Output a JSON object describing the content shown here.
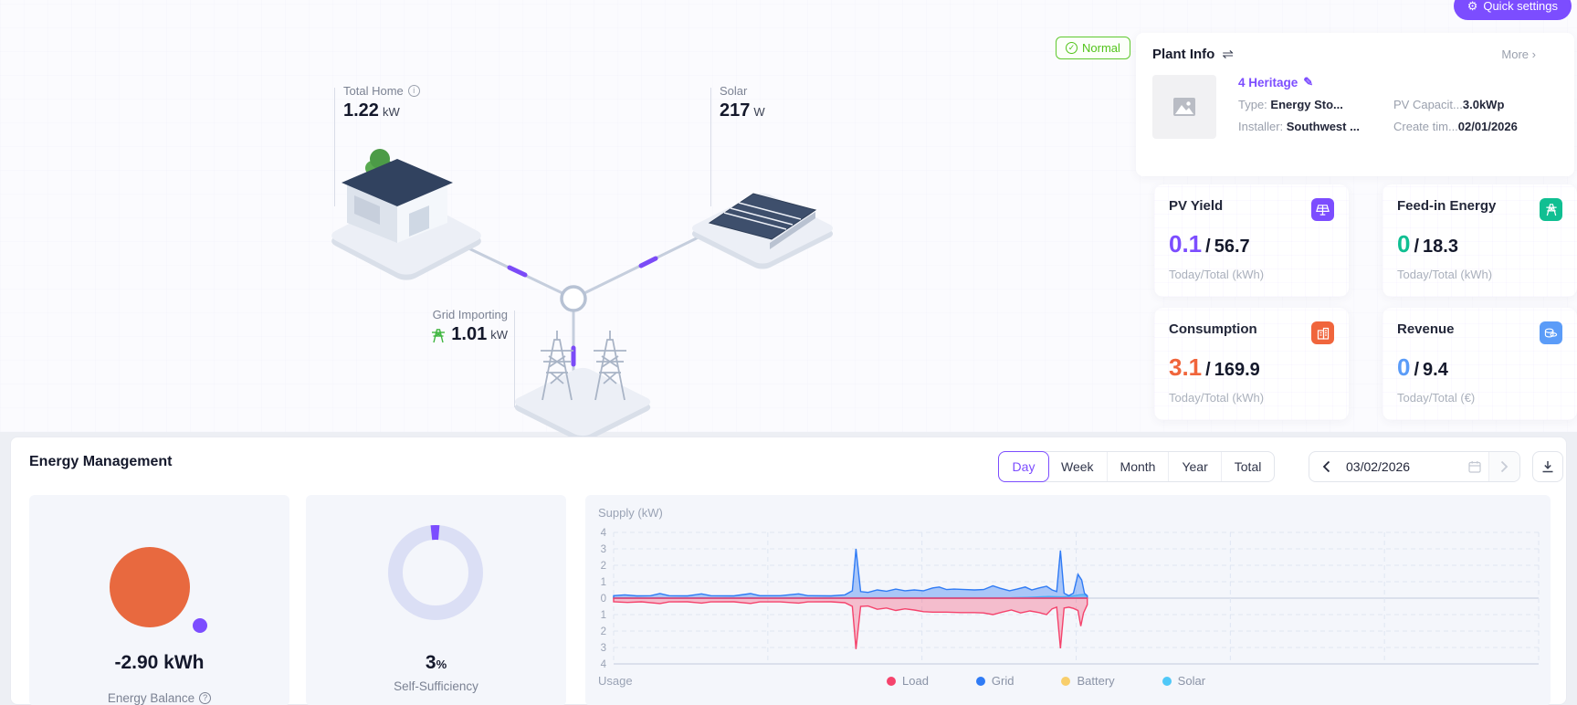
{
  "ui": {
    "separator": "/"
  },
  "colors": {
    "accent": "#7c4dff",
    "normal_green": "#52c41a",
    "balance_main": "#e8693f",
    "balance_dot": "#7c4dff",
    "donut_track": "#dbdff5",
    "donut_fill": "#7c4dff"
  },
  "header": {
    "quick_settings": "Quick settings"
  },
  "status_badge": {
    "label": "Normal"
  },
  "flow": {
    "home": {
      "label": "Total Home",
      "value": "1.22",
      "unit": "kW"
    },
    "solar": {
      "label": "Solar",
      "value": "217",
      "unit": "W"
    },
    "grid": {
      "label": "Grid Importing",
      "value": "1.01",
      "unit": "kW"
    }
  },
  "plant_info": {
    "title": "Plant Info",
    "more": "More",
    "more_arrow": "›",
    "name": "4 Heritage",
    "type_label": "Type:",
    "type_value": "Energy Sto...",
    "pv_label": "PV Capacit...",
    "pv_value": "3.0kWp",
    "installer_label": "Installer:",
    "installer_value": "Southwest ...",
    "create_label": "Create tim...",
    "create_value": "02/01/2026"
  },
  "stat_cards": [
    {
      "title": "PV Yield",
      "today": "0.1",
      "total": "56.7",
      "footer": "Today/Total (kWh)",
      "color": "#7c4dff",
      "icon": "solar-panel"
    },
    {
      "title": "Feed-in Energy",
      "today": "0",
      "total": "18.3",
      "footer": "Today/Total (kWh)",
      "color": "#10bf92",
      "icon": "pylon"
    },
    {
      "title": "Consumption",
      "today": "3.1",
      "total": "169.9",
      "footer": "Today/Total (kWh)",
      "color": "#f0653c",
      "icon": "building"
    },
    {
      "title": "Revenue",
      "today": "0",
      "total": "9.4",
      "footer": "Today/Total (€)",
      "color": "#5b9cf8",
      "icon": "coins"
    }
  ],
  "energy_management": {
    "title": "Energy Management",
    "tabs": [
      "Day",
      "Week",
      "Month",
      "Year",
      "Total"
    ],
    "active_tab": "Day",
    "date": "03/02/2026",
    "balance": {
      "value": "-2.90 kWh",
      "label": "Energy Balance"
    },
    "self_sufficiency": {
      "value": "3",
      "unit": "%",
      "label": "Self-Sufficiency",
      "percent": 3
    }
  },
  "chart_data": {
    "type": "area",
    "title": "Supply (kW)",
    "xlabel_bottom": "Usage",
    "yticks": [
      4,
      3,
      2,
      1,
      0,
      1,
      2,
      3,
      4
    ],
    "ymax": 4,
    "x_range_hours": 24,
    "grid": "dashed",
    "legend_position": "bottom",
    "legend": [
      {
        "name": "Load",
        "color": "#f5436c"
      },
      {
        "name": "Grid",
        "color": "#2f7bf5"
      },
      {
        "name": "Battery",
        "color": "#f8ce6b"
      },
      {
        "name": "Solar",
        "color": "#4fc8f8"
      }
    ],
    "series": [
      {
        "name": "Battery",
        "color": "#f8ce6b",
        "fill": "rgba(248,206,107,0.45)",
        "direction": "up",
        "points": [
          [
            0,
            0.02
          ],
          [
            0.512,
            0.02
          ]
        ]
      },
      {
        "name": "Solar",
        "color": "#4fc8f8",
        "fill": "rgba(79,200,248,0.5)",
        "direction": "up",
        "points": [
          [
            0,
            0.01
          ],
          [
            0.43,
            0.02
          ],
          [
            0.45,
            0.05
          ],
          [
            0.47,
            0.1
          ],
          [
            0.485,
            0.08
          ],
          [
            0.495,
            0.12
          ],
          [
            0.503,
            0.2
          ],
          [
            0.508,
            0.22
          ],
          [
            0.512,
            0.12
          ]
        ]
      },
      {
        "name": "Grid",
        "color": "#2f7bf5",
        "fill": "rgba(77,139,244,0.45)",
        "direction": "up",
        "points": [
          [
            0,
            0.15
          ],
          [
            0.012,
            0.2
          ],
          [
            0.025,
            0.14
          ],
          [
            0.04,
            0.15
          ],
          [
            0.05,
            0.28
          ],
          [
            0.06,
            0.15
          ],
          [
            0.08,
            0.14
          ],
          [
            0.095,
            0.26
          ],
          [
            0.105,
            0.15
          ],
          [
            0.13,
            0.14
          ],
          [
            0.148,
            0.28
          ],
          [
            0.158,
            0.15
          ],
          [
            0.18,
            0.15
          ],
          [
            0.2,
            0.26
          ],
          [
            0.21,
            0.15
          ],
          [
            0.235,
            0.14
          ],
          [
            0.25,
            0.2
          ],
          [
            0.258,
            0.45
          ],
          [
            0.262,
            3.0
          ],
          [
            0.267,
            0.4
          ],
          [
            0.275,
            0.35
          ],
          [
            0.285,
            0.5
          ],
          [
            0.295,
            0.42
          ],
          [
            0.305,
            0.55
          ],
          [
            0.315,
            0.45
          ],
          [
            0.325,
            0.5
          ],
          [
            0.335,
            0.45
          ],
          [
            0.345,
            0.62
          ],
          [
            0.352,
            0.68
          ],
          [
            0.36,
            0.52
          ],
          [
            0.368,
            0.55
          ],
          [
            0.38,
            0.52
          ],
          [
            0.39,
            0.5
          ],
          [
            0.4,
            0.52
          ],
          [
            0.41,
            0.75
          ],
          [
            0.418,
            0.6
          ],
          [
            0.428,
            0.45
          ],
          [
            0.436,
            0.55
          ],
          [
            0.445,
            0.68
          ],
          [
            0.452,
            0.5
          ],
          [
            0.46,
            0.62
          ],
          [
            0.468,
            0.72
          ],
          [
            0.474,
            0.5
          ],
          [
            0.479,
            0.4
          ],
          [
            0.483,
            2.9
          ],
          [
            0.487,
            0.3
          ],
          [
            0.492,
            0.15
          ],
          [
            0.497,
            0.3
          ],
          [
            0.502,
            1.45
          ],
          [
            0.506,
            1.1
          ],
          [
            0.509,
            0.3
          ],
          [
            0.512,
            0.15
          ]
        ]
      },
      {
        "name": "Load",
        "color": "#f5436c",
        "fill": "rgba(245,67,108,0.32)",
        "direction": "down",
        "points": [
          [
            0,
            0.22
          ],
          [
            0.015,
            0.26
          ],
          [
            0.03,
            0.22
          ],
          [
            0.05,
            0.33
          ],
          [
            0.06,
            0.23
          ],
          [
            0.08,
            0.22
          ],
          [
            0.095,
            0.3
          ],
          [
            0.105,
            0.23
          ],
          [
            0.13,
            0.22
          ],
          [
            0.148,
            0.32
          ],
          [
            0.158,
            0.23
          ],
          [
            0.18,
            0.23
          ],
          [
            0.2,
            0.3
          ],
          [
            0.21,
            0.23
          ],
          [
            0.235,
            0.22
          ],
          [
            0.25,
            0.28
          ],
          [
            0.258,
            0.5
          ],
          [
            0.262,
            3.1
          ],
          [
            0.267,
            0.5
          ],
          [
            0.275,
            0.48
          ],
          [
            0.285,
            0.68
          ],
          [
            0.295,
            0.6
          ],
          [
            0.305,
            0.75
          ],
          [
            0.315,
            0.65
          ],
          [
            0.325,
            0.72
          ],
          [
            0.335,
            0.82
          ],
          [
            0.345,
            0.85
          ],
          [
            0.36,
            0.85
          ],
          [
            0.375,
            0.88
          ],
          [
            0.39,
            0.88
          ],
          [
            0.4,
            0.9
          ],
          [
            0.41,
            1.0
          ],
          [
            0.42,
            0.85
          ],
          [
            0.43,
            0.72
          ],
          [
            0.44,
            0.9
          ],
          [
            0.45,
            0.78
          ],
          [
            0.46,
            0.88
          ],
          [
            0.468,
            1.0
          ],
          [
            0.474,
            0.65
          ],
          [
            0.479,
            0.55
          ],
          [
            0.483,
            3.05
          ],
          [
            0.487,
            0.6
          ],
          [
            0.492,
            0.55
          ],
          [
            0.497,
            0.62
          ],
          [
            0.502,
            0.75
          ],
          [
            0.505,
            1.7
          ],
          [
            0.508,
            0.9
          ],
          [
            0.512,
            0.4
          ]
        ]
      }
    ]
  }
}
